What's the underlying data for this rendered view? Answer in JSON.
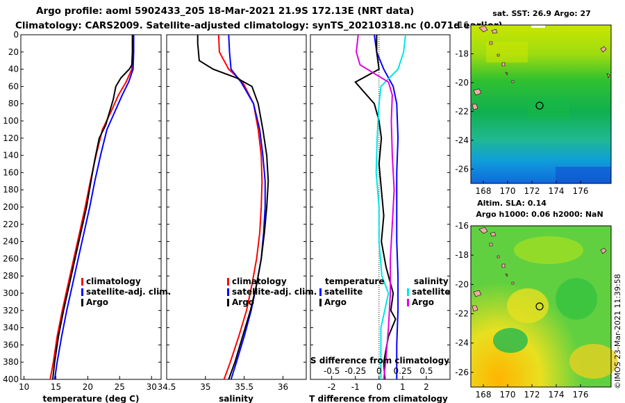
{
  "header": {
    "line1": "Argo profile: aoml 5902433_205 18-Mar-2021 21.9S 172.13E (NRT data)",
    "line2": "Climatology: CARS2009. Satellite-adjusted climatology: synTS_20210318.nc (0.071d earlier)"
  },
  "colors": {
    "climatology": "#ff0000",
    "satellite": "#0000ff",
    "argo": "#000000",
    "sat_diff_T": "#0000ff",
    "sat_diff_S": "#00e5e5",
    "argo_diff_S": "#e000e0"
  },
  "depth_axis": {
    "ticks": [
      "0",
      "20",
      "40",
      "60",
      "80",
      "100",
      "120",
      "140",
      "160",
      "180",
      "200",
      "220",
      "240",
      "260",
      "280",
      "300",
      "320",
      "340",
      "360",
      "380",
      "400"
    ],
    "range": [
      0,
      400
    ]
  },
  "chart_data": [
    {
      "type": "line",
      "id": "temperature",
      "xlabel": "temperature (deg C)",
      "xlim": [
        9.5,
        31.5
      ],
      "xticks": [
        "10",
        "15",
        "20",
        "25",
        "30"
      ],
      "ylabel": "depth",
      "legend": [
        "climatology",
        "satellite-adj. clim.",
        "Argo"
      ],
      "series": [
        {
          "name": "climatology",
          "color": "#ff0000",
          "points": [
            [
              27.0,
              0
            ],
            [
              27.0,
              20
            ],
            [
              26.9,
              40
            ],
            [
              26.0,
              55
            ],
            [
              24.8,
              70
            ],
            [
              23.6,
              90
            ],
            [
              22.3,
              110
            ],
            [
              21.3,
              140
            ],
            [
              20.4,
              170
            ],
            [
              19.6,
              200
            ],
            [
              18.7,
              230
            ],
            [
              17.8,
              260
            ],
            [
              16.9,
              290
            ],
            [
              16.0,
              320
            ],
            [
              15.2,
              350
            ],
            [
              14.6,
              380
            ],
            [
              14.1,
              400
            ]
          ]
        },
        {
          "name": "satellite-adj. clim.",
          "color": "#0000ff",
          "points": [
            [
              27.2,
              0
            ],
            [
              27.2,
              20
            ],
            [
              27.1,
              40
            ],
            [
              26.4,
              55
            ],
            [
              25.4,
              70
            ],
            [
              24.2,
              90
            ],
            [
              23.0,
              110
            ],
            [
              22.0,
              140
            ],
            [
              21.1,
              170
            ],
            [
              20.3,
              200
            ],
            [
              19.4,
              230
            ],
            [
              18.5,
              260
            ],
            [
              17.6,
              290
            ],
            [
              16.7,
              320
            ],
            [
              15.9,
              350
            ],
            [
              15.2,
              380
            ],
            [
              14.8,
              400
            ]
          ]
        },
        {
          "name": "Argo",
          "color": "#000000",
          "points": [
            [
              27.0,
              0
            ],
            [
              27.0,
              20
            ],
            [
              26.9,
              35
            ],
            [
              26.5,
              40
            ],
            [
              25.2,
              50
            ],
            [
              24.4,
              60
            ],
            [
              24.0,
              75
            ],
            [
              23.4,
              90
            ],
            [
              22.8,
              105
            ],
            [
              21.8,
              120
            ],
            [
              21.1,
              145
            ],
            [
              20.5,
              170
            ],
            [
              19.8,
              200
            ],
            [
              18.9,
              230
            ],
            [
              18.0,
              260
            ],
            [
              17.1,
              290
            ],
            [
              16.2,
              320
            ],
            [
              15.4,
              350
            ],
            [
              14.8,
              380
            ],
            [
              14.5,
              400
            ]
          ]
        }
      ]
    },
    {
      "type": "line",
      "id": "salinity",
      "xlabel": "salinity",
      "xlim": [
        34.5,
        36.3
      ],
      "xticks": [
        "34.5",
        "35",
        "35.5",
        "36"
      ],
      "ylabel": "depth",
      "legend": [
        "climatology",
        "satellite-adj. clim.",
        "Argo"
      ],
      "series": [
        {
          "name": "climatology",
          "color": "#ff0000",
          "points": [
            [
              35.17,
              0
            ],
            [
              35.18,
              20
            ],
            [
              35.3,
              40
            ],
            [
              35.48,
              55
            ],
            [
              35.62,
              80
            ],
            [
              35.68,
              110
            ],
            [
              35.72,
              140
            ],
            [
              35.73,
              170
            ],
            [
              35.72,
              200
            ],
            [
              35.7,
              230
            ],
            [
              35.66,
              260
            ],
            [
              35.6,
              290
            ],
            [
              35.53,
              320
            ],
            [
              35.43,
              350
            ],
            [
              35.32,
              380
            ],
            [
              35.24,
              400
            ]
          ]
        },
        {
          "name": "satellite-adj. clim.",
          "color": "#0000ff",
          "points": [
            [
              35.3,
              0
            ],
            [
              35.31,
              20
            ],
            [
              35.33,
              40
            ],
            [
              35.46,
              55
            ],
            [
              35.62,
              80
            ],
            [
              35.7,
              110
            ],
            [
              35.74,
              140
            ],
            [
              35.77,
              170
            ],
            [
              35.77,
              200
            ],
            [
              35.75,
              230
            ],
            [
              35.72,
              260
            ],
            [
              35.66,
              290
            ],
            [
              35.59,
              320
            ],
            [
              35.5,
              350
            ],
            [
              35.4,
              380
            ],
            [
              35.33,
              400
            ]
          ]
        },
        {
          "name": "Argo",
          "color": "#000000",
          "points": [
            [
              34.9,
              0
            ],
            [
              34.9,
              10
            ],
            [
              34.92,
              30
            ],
            [
              35.1,
              40
            ],
            [
              35.4,
              50
            ],
            [
              35.6,
              60
            ],
            [
              35.68,
              80
            ],
            [
              35.74,
              110
            ],
            [
              35.79,
              140
            ],
            [
              35.81,
              170
            ],
            [
              35.79,
              200
            ],
            [
              35.76,
              230
            ],
            [
              35.72,
              260
            ],
            [
              35.66,
              290
            ],
            [
              35.58,
              320
            ],
            [
              35.48,
              350
            ],
            [
              35.38,
              380
            ],
            [
              35.3,
              400
            ]
          ]
        }
      ]
    },
    {
      "type": "line",
      "id": "difference",
      "xlabel": "T difference from climatology",
      "xlabel_top": "S difference from climatology",
      "xlim": [
        -2.9,
        3.0
      ],
      "xticks": [
        "-2",
        "-1",
        "0",
        "1",
        "2"
      ],
      "xticks_top": [
        "-0.5",
        "-0.25",
        "0",
        "0.25",
        "0.5"
      ],
      "ylabel": "depth",
      "legend_left_title": "temperature",
      "legend_left": [
        "satellite",
        "Argo"
      ],
      "legend_right_title": "salinity",
      "legend_right": [
        "satellite",
        "Argo"
      ],
      "series": [
        {
          "name": "temperature satellite",
          "color": "#0000ff",
          "points": [
            [
              -0.2,
              0
            ],
            [
              -0.1,
              20
            ],
            [
              0.2,
              40
            ],
            [
              0.6,
              60
            ],
            [
              0.75,
              80
            ],
            [
              0.8,
              120
            ],
            [
              0.75,
              160
            ],
            [
              0.75,
              200
            ],
            [
              0.75,
              240
            ],
            [
              0.8,
              280
            ],
            [
              0.8,
              320
            ],
            [
              0.75,
              360
            ],
            [
              0.75,
              400
            ]
          ]
        },
        {
          "name": "temperature Argo",
          "color": "#000000",
          "points": [
            [
              -0.1,
              0
            ],
            [
              -0.1,
              20
            ],
            [
              0,
              40
            ],
            [
              -1.0,
              55
            ],
            [
              -0.2,
              80
            ],
            [
              0,
              100
            ],
            [
              0.1,
              120
            ],
            [
              0,
              150
            ],
            [
              0.1,
              180
            ],
            [
              0.2,
              210
            ],
            [
              0.1,
              240
            ],
            [
              0.3,
              270
            ],
            [
              0.6,
              300
            ],
            [
              0.5,
              320
            ],
            [
              0.7,
              330
            ],
            [
              0.4,
              350
            ],
            [
              0.2,
              380
            ],
            [
              0.25,
              400
            ]
          ]
        },
        {
          "name": "salinity satellite",
          "color": "#00e5e5",
          "points": [
            [
              0.28,
              0
            ],
            [
              0.26,
              20
            ],
            [
              0.2,
              40
            ],
            [
              0.02,
              60
            ],
            [
              0.0,
              80
            ],
            [
              -0.02,
              120
            ],
            [
              -0.03,
              160
            ],
            [
              0.0,
              200
            ],
            [
              0.0,
              240
            ],
            [
              0.03,
              280
            ],
            [
              0.1,
              300
            ],
            [
              0.06,
              320
            ],
            [
              0.02,
              340
            ],
            [
              0.02,
              380
            ],
            [
              0.02,
              400
            ]
          ]
        },
        {
          "name": "salinity Argo",
          "color": "#e000e0",
          "points": [
            [
              -0.22,
              0
            ],
            [
              -0.24,
              20
            ],
            [
              -0.2,
              35
            ],
            [
              -0.05,
              45
            ],
            [
              0.1,
              55
            ],
            [
              0.14,
              70
            ],
            [
              0.13,
              100
            ],
            [
              0.14,
              140
            ],
            [
              0.16,
              180
            ],
            [
              0.14,
              220
            ],
            [
              0.12,
              260
            ],
            [
              0.12,
              300
            ],
            [
              0.1,
              340
            ],
            [
              0.07,
              380
            ],
            [
              0.05,
              400
            ]
          ]
        }
      ]
    }
  ],
  "maps": {
    "sst": {
      "title": "sat. SST: 26.9 Argo: 27",
      "xticks": [
        "168",
        "170",
        "172",
        "174",
        "176"
      ],
      "yticks": [
        "-16",
        "-18",
        "-20",
        "-22",
        "-24",
        "-26"
      ]
    },
    "sla": {
      "title1": "Altim. SLA: 0.14",
      "title2": "Argo h1000: 0.06 h2000: NaN",
      "xticks": [
        "168",
        "170",
        "172",
        "174",
        "176"
      ],
      "yticks": [
        "-16",
        "-18",
        "-20",
        "-22",
        "-24",
        "-26"
      ]
    }
  },
  "credit": "©IMOS 23-Mar-2021 11:39:58"
}
